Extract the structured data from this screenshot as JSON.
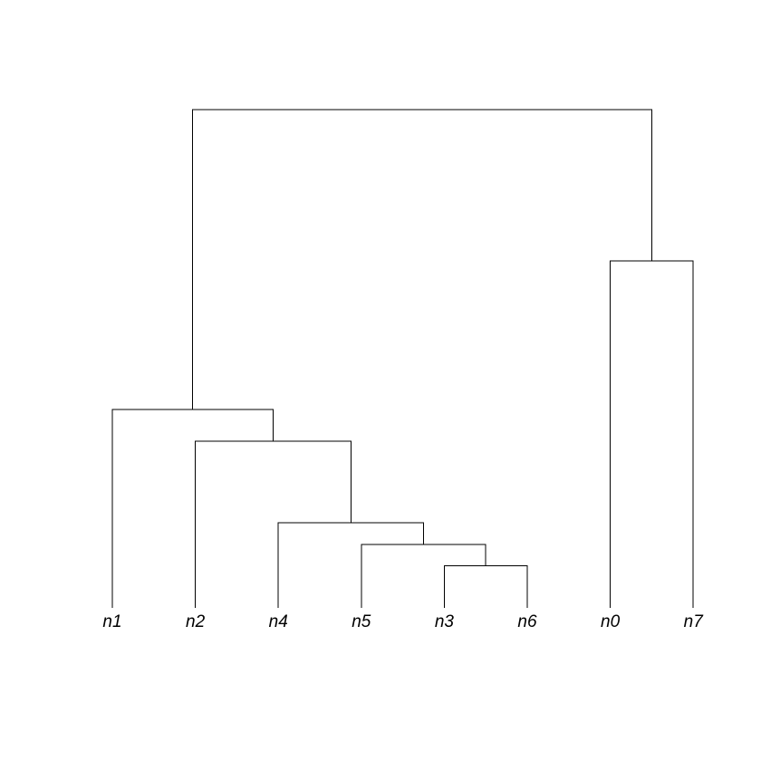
{
  "diagram": {
    "type": "dendrogram",
    "leaves": [
      "n1",
      "n2",
      "n4",
      "n5",
      "n3",
      "n6",
      "n0",
      "n7"
    ],
    "merges": [
      {
        "id": "m1",
        "left": "n3",
        "right": "n6",
        "height": 0.0846
      },
      {
        "id": "m2",
        "left": "n5",
        "right": "m1",
        "height": 0.1273
      },
      {
        "id": "m3",
        "left": "n4",
        "right": "m2",
        "height": 0.1709
      },
      {
        "id": "m4",
        "left": "n2",
        "right": "m3",
        "height": 0.3345
      },
      {
        "id": "m5",
        "left": "n1",
        "right": "m4",
        "height": 0.3982
      },
      {
        "id": "m6",
        "left": "n0",
        "right": "n7",
        "height": 0.6964
      },
      {
        "id": "m7",
        "left": "m5",
        "right": "m6",
        "height": 1.0
      }
    ],
    "colors": {
      "line": "#000000",
      "label": "#000000",
      "background": "#ffffff"
    }
  }
}
